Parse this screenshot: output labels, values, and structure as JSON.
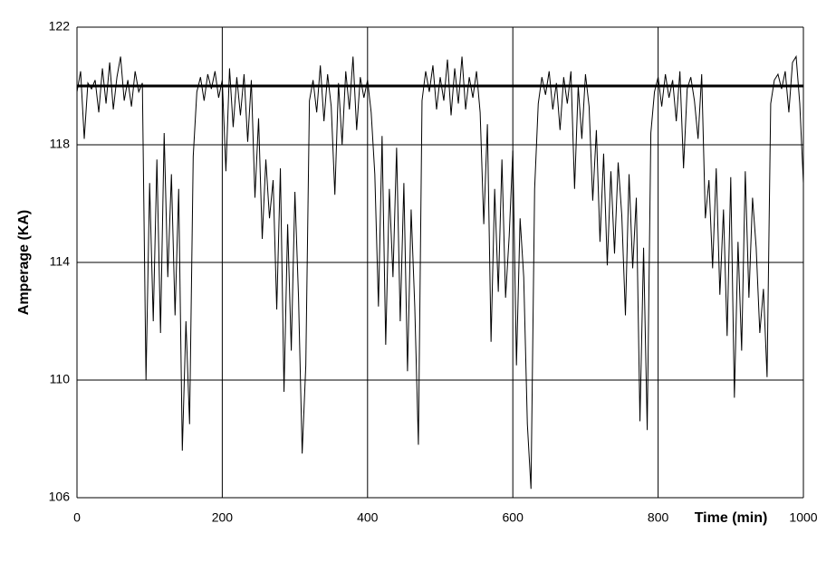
{
  "chart_data": {
    "type": "line",
    "x_label": "Time (min)",
    "y_label": "Amperage (KA)",
    "xlim": [
      0,
      1000
    ],
    "xticks": [
      0,
      200,
      400,
      600,
      800,
      1000
    ],
    "ylim": [
      106,
      122
    ],
    "yticks": [
      106,
      110,
      114,
      118,
      122
    ],
    "grid": true,
    "series": [
      {
        "color": "#000000",
        "x": [
          0,
          5,
          10,
          15,
          20,
          25,
          30,
          35,
          40,
          45,
          50,
          55,
          60,
          65,
          70,
          75,
          80,
          85,
          90,
          95,
          100,
          105,
          110,
          115,
          120,
          125,
          130,
          135,
          140,
          145,
          150,
          155,
          160,
          165,
          170,
          175,
          180,
          185,
          190,
          195,
          200,
          205,
          210,
          215,
          220,
          225,
          230,
          235,
          240,
          245,
          250,
          255,
          260,
          265,
          270,
          275,
          280,
          285,
          290,
          295,
          300,
          305,
          310,
          315,
          320,
          325,
          330,
          335,
          340,
          345,
          350,
          355,
          360,
          365,
          370,
          375,
          380,
          385,
          390,
          395,
          400,
          405,
          410,
          415,
          420,
          425,
          430,
          435,
          440,
          445,
          450,
          455,
          460,
          465,
          470,
          475,
          480,
          485,
          490,
          495,
          500,
          505,
          510,
          515,
          520,
          525,
          530,
          535,
          540,
          545,
          550,
          555,
          560,
          565,
          570,
          575,
          580,
          585,
          590,
          595,
          600,
          605,
          610,
          615,
          620,
          625,
          630,
          635,
          640,
          645,
          650,
          655,
          660,
          665,
          670,
          675,
          680,
          685,
          690,
          695,
          700,
          705,
          710,
          715,
          720,
          725,
          730,
          735,
          740,
          745,
          750,
          755,
          760,
          765,
          770,
          775,
          780,
          785,
          790,
          795,
          800,
          805,
          810,
          815,
          820,
          825,
          830,
          835,
          840,
          845,
          850,
          855,
          860,
          865,
          870,
          875,
          880,
          885,
          890,
          895,
          900,
          905,
          910,
          915,
          920,
          925,
          930,
          935,
          940,
          945,
          950,
          955,
          960,
          965,
          970,
          975,
          980,
          985,
          990,
          995,
          1000
        ],
        "values": [
          119.8,
          120.5,
          118.2,
          120.1,
          119.9,
          120.2,
          119.1,
          120.6,
          119.4,
          120.8,
          119.2,
          120.3,
          121,
          119.5,
          120.2,
          119.3,
          120.5,
          119.8,
          120.1,
          110,
          116.7,
          112,
          117.5,
          111.6,
          118.4,
          113.5,
          117,
          112.2,
          116.5,
          107.6,
          112,
          108.5,
          117.6,
          119.8,
          120.3,
          119.5,
          120.4,
          119.9,
          120.5,
          119.6,
          120.2,
          117.1,
          120.6,
          118.6,
          120.3,
          119,
          120.4,
          118.1,
          120.2,
          116.2,
          118.9,
          114.8,
          117.5,
          115.5,
          116.8,
          112.4,
          117.2,
          109.6,
          115.3,
          111,
          116.4,
          112.8,
          107.5,
          110.5,
          119.5,
          120.2,
          119.1,
          120.7,
          118.8,
          120.4,
          119.3,
          116.3,
          120.1,
          118,
          120.5,
          119.2,
          121,
          118.5,
          120.3,
          119.6,
          120.2,
          119.1,
          117,
          112.5,
          118.3,
          111.2,
          116.5,
          113.5,
          117.9,
          112,
          116.7,
          110.3,
          115.8,
          112.5,
          107.8,
          119.5,
          120.5,
          119.8,
          120.7,
          119.2,
          120.3,
          119.5,
          120.9,
          119,
          120.6,
          119.4,
          121,
          119.2,
          120.3,
          119.6,
          120.5,
          119.1,
          115.3,
          118.7,
          111.3,
          116.5,
          113,
          117.5,
          112.8,
          114.9,
          117.8,
          110.5,
          115.5,
          113.5,
          108.5,
          106.3,
          116.5,
          119.4,
          120.3,
          119.7,
          120.5,
          119.2,
          120.1,
          118.5,
          120.3,
          119.4,
          120.5,
          116.5,
          120,
          118.2,
          120.4,
          119.3,
          116.1,
          118.5,
          114.7,
          117.7,
          113.9,
          117.1,
          114.3,
          117.4,
          115.6,
          112.2,
          117,
          113.8,
          116.2,
          108.6,
          114.5,
          108.3,
          118.4,
          119.8,
          120.3,
          119.3,
          120.4,
          119.6,
          120.2,
          118.8,
          120.5,
          117.2,
          119.9,
          120.3,
          119.5,
          118.2,
          120.4,
          115.5,
          116.8,
          113.8,
          117.2,
          112.9,
          115.8,
          111.5,
          116.9,
          109.4,
          114.7,
          111,
          117.1,
          112.8,
          116.2,
          114.5,
          111.6,
          113.1,
          110.1,
          119.4,
          120.2,
          120.4,
          119.9,
          120.5,
          119.1,
          120.8,
          121,
          119.4,
          116.7
        ]
      },
      {
        "color": "#000000",
        "x": [
          0,
          1000
        ],
        "values": [
          120,
          120
        ]
      }
    ]
  }
}
